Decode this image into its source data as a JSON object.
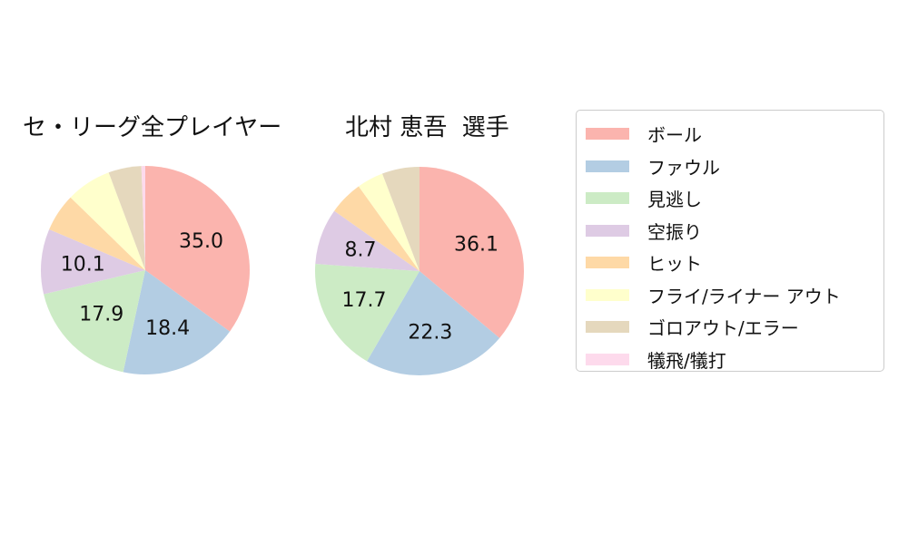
{
  "page_background": "#ffffff",
  "palette": {
    "red": "#fbb4ae",
    "blue": "#b3cde3",
    "green": "#ccebc5",
    "purple": "#decbe4",
    "orange": "#fed9a6",
    "yellow": "#ffffcc",
    "tan": "#e5d8bd",
    "pink": "#fddaec"
  },
  "legend": {
    "position": "right",
    "border_color": "#cccccc",
    "items": [
      {
        "label": "ボール",
        "color": "#fbb4ae"
      },
      {
        "label": "ファウル",
        "color": "#b3cde3"
      },
      {
        "label": "見逃し",
        "color": "#ccebc5"
      },
      {
        "label": "空振り",
        "color": "#decbe4"
      },
      {
        "label": "ヒット",
        "color": "#fed9a6"
      },
      {
        "label": "フライ/ライナー アウト",
        "color": "#ffffcc"
      },
      {
        "label": "ゴロアウト/エラー",
        "color": "#e5d8bd"
      },
      {
        "label": "犠飛/犠打",
        "color": "#fddaec"
      }
    ]
  },
  "chart_data": [
    {
      "type": "pie",
      "title": "セ・リーグ全プレイヤー",
      "start_angle_deg": 0,
      "direction": "clockwise",
      "categories": [
        "ボール",
        "ファウル",
        "見逃し",
        "空振り",
        "ヒット",
        "フライ/ライナー アウト",
        "ゴロアウト/エラー",
        "犠飛/犠打"
      ],
      "values": [
        35.0,
        18.4,
        17.9,
        10.1,
        5.9,
        7.0,
        5.1,
        0.6
      ],
      "shown_labels": [
        "35.0",
        "18.4",
        "17.9",
        "10.1",
        null,
        null,
        null,
        null
      ],
      "colors": [
        "#fbb4ae",
        "#b3cde3",
        "#ccebc5",
        "#decbe4",
        "#fed9a6",
        "#ffffcc",
        "#e5d8bd",
        "#fddaec"
      ],
      "label_radius_ratio": 0.6
    },
    {
      "type": "pie",
      "title": "北村 恵吾  選手",
      "start_angle_deg": 0,
      "direction": "clockwise",
      "categories": [
        "ボール",
        "ファウル",
        "見逃し",
        "空振り",
        "ヒット",
        "フライ/ライナー アウト",
        "ゴロアウト/エラー",
        "犠飛/犠打"
      ],
      "values": [
        36.1,
        22.3,
        17.7,
        8.7,
        5.3,
        4.1,
        5.8,
        0.0
      ],
      "shown_labels": [
        "36.1",
        "22.3",
        "17.7",
        "8.7",
        null,
        null,
        null,
        null
      ],
      "colors": [
        "#fbb4ae",
        "#b3cde3",
        "#ccebc5",
        "#decbe4",
        "#fed9a6",
        "#ffffcc",
        "#e5d8bd",
        "#fddaec"
      ],
      "label_radius_ratio": 0.6
    }
  ]
}
